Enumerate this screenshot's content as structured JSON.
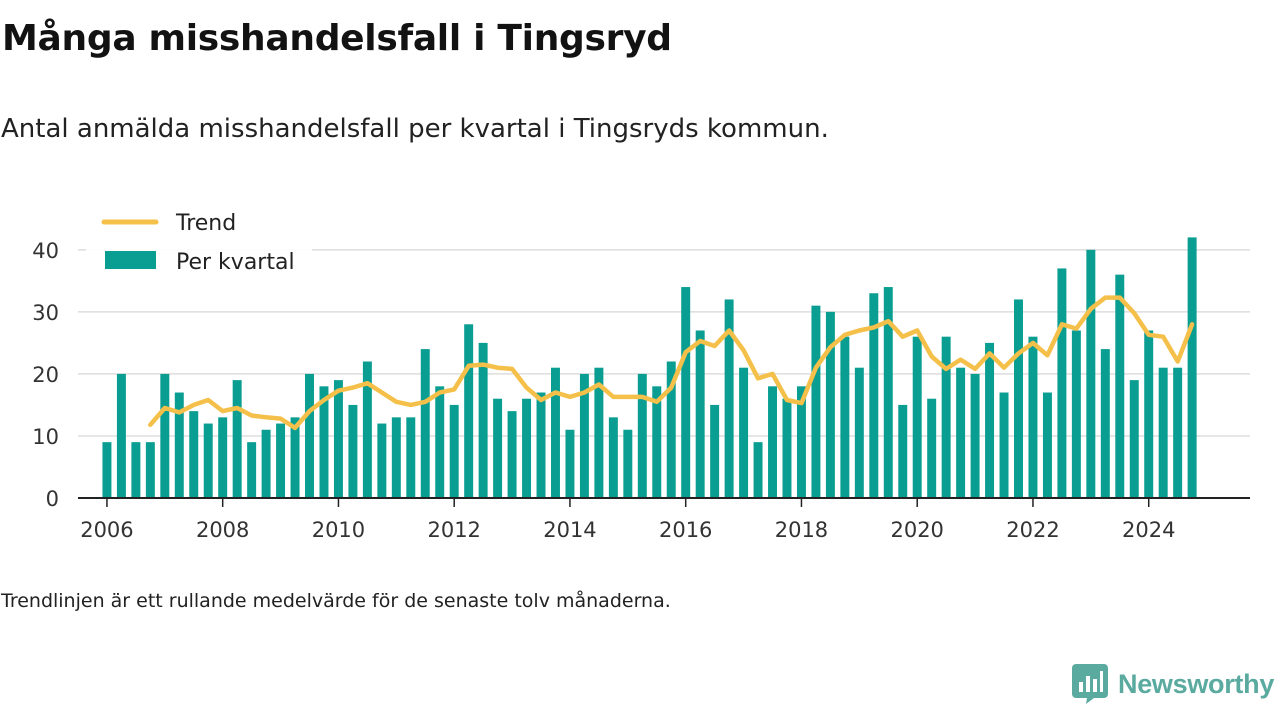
{
  "title": "Många misshandelsfall i Tingsryd",
  "subtitle": "Antal anmälda misshandelsfall per kvartal i Tingsryds kommun.",
  "note": "Trendlinjen är ett rullande medelvärde för de senaste tolv månaderna.",
  "brand": {
    "name": "Newsworthy",
    "icon": "newsworthy-chart-logo-icon"
  },
  "colors": {
    "bar": "#0a9e92",
    "trend": "#f5c04a",
    "grid": "#dddddd",
    "axis": "#222222",
    "brand": "#5aaaa0"
  },
  "chart_data": {
    "type": "bar",
    "legend": {
      "placement": "top-left",
      "entries": [
        "Trend",
        "Per kvartal"
      ]
    },
    "grid": true,
    "x_ticks": [
      "2006",
      "2008",
      "2010",
      "2012",
      "2014",
      "2016",
      "2018",
      "2020",
      "2022",
      "2024"
    ],
    "y_ticks": [
      "0",
      "10",
      "20",
      "30",
      "40"
    ],
    "ylim": [
      0,
      44
    ],
    "x_range": [
      "2005-07",
      "2025-10"
    ],
    "series": [
      {
        "name": "Per kvartal",
        "type": "bar",
        "x": [
          "2006-Q1",
          "2006-Q2",
          "2006-Q3",
          "2006-Q4",
          "2007-Q1",
          "2007-Q2",
          "2007-Q3",
          "2007-Q4",
          "2008-Q1",
          "2008-Q2",
          "2008-Q3",
          "2008-Q4",
          "2009-Q1",
          "2009-Q2",
          "2009-Q3",
          "2009-Q4",
          "2010-Q1",
          "2010-Q2",
          "2010-Q3",
          "2010-Q4",
          "2011-Q1",
          "2011-Q2",
          "2011-Q3",
          "2011-Q4",
          "2012-Q1",
          "2012-Q2",
          "2012-Q3",
          "2012-Q4",
          "2013-Q1",
          "2013-Q2",
          "2013-Q3",
          "2013-Q4",
          "2014-Q1",
          "2014-Q2",
          "2014-Q3",
          "2014-Q4",
          "2015-Q1",
          "2015-Q2",
          "2015-Q3",
          "2015-Q4",
          "2016-Q1",
          "2016-Q2",
          "2016-Q3",
          "2016-Q4",
          "2017-Q1",
          "2017-Q2",
          "2017-Q3",
          "2017-Q4",
          "2018-Q1",
          "2018-Q2",
          "2018-Q3",
          "2018-Q4",
          "2019-Q1",
          "2019-Q2",
          "2019-Q3",
          "2019-Q4",
          "2020-Q1",
          "2020-Q2",
          "2020-Q3",
          "2020-Q4",
          "2021-Q1",
          "2021-Q2",
          "2021-Q3",
          "2021-Q4",
          "2022-Q1",
          "2022-Q2",
          "2022-Q3",
          "2022-Q4",
          "2023-Q1",
          "2023-Q2",
          "2023-Q3",
          "2023-Q4",
          "2024-Q1",
          "2024-Q2",
          "2024-Q3",
          "2024-Q4"
        ],
        "values": [
          9,
          20,
          9,
          9,
          20,
          17,
          14,
          12,
          13,
          19,
          9,
          11,
          12,
          13,
          20,
          18,
          19,
          15,
          22,
          12,
          13,
          13,
          24,
          18,
          15,
          28,
          25,
          16,
          14,
          16,
          17,
          21,
          11,
          20,
          21,
          13,
          11,
          20,
          18,
          22,
          34,
          27,
          15,
          32,
          21,
          9,
          18,
          16,
          18,
          31,
          30,
          26,
          21,
          33,
          34,
          15,
          26,
          16,
          26,
          21,
          20,
          25,
          17,
          32,
          26,
          17,
          37,
          27,
          40,
          24,
          36,
          19,
          27,
          21,
          21,
          42
        ]
      },
      {
        "name": "Trend",
        "type": "line",
        "x": [
          "2006-Q4",
          "2007-Q1",
          "2007-Q2",
          "2007-Q3",
          "2007-Q4",
          "2008-Q1",
          "2008-Q2",
          "2008-Q3",
          "2008-Q4",
          "2009-Q1",
          "2009-Q2",
          "2009-Q3",
          "2009-Q4",
          "2010-Q1",
          "2010-Q2",
          "2010-Q3",
          "2010-Q4",
          "2011-Q1",
          "2011-Q2",
          "2011-Q3",
          "2011-Q4",
          "2012-Q1",
          "2012-Q2",
          "2012-Q3",
          "2012-Q4",
          "2013-Q1",
          "2013-Q2",
          "2013-Q3",
          "2013-Q4",
          "2014-Q1",
          "2014-Q2",
          "2014-Q3",
          "2014-Q4",
          "2015-Q1",
          "2015-Q2",
          "2015-Q3",
          "2015-Q4",
          "2016-Q1",
          "2016-Q2",
          "2016-Q3",
          "2016-Q4",
          "2017-Q1",
          "2017-Q2",
          "2017-Q3",
          "2017-Q4",
          "2018-Q1",
          "2018-Q2",
          "2018-Q3",
          "2018-Q4",
          "2019-Q1",
          "2019-Q2",
          "2019-Q3",
          "2019-Q4",
          "2020-Q1",
          "2020-Q2",
          "2020-Q3",
          "2020-Q4",
          "2021-Q1",
          "2021-Q2",
          "2021-Q3",
          "2021-Q4",
          "2022-Q1",
          "2022-Q2",
          "2022-Q3",
          "2022-Q4",
          "2023-Q1",
          "2023-Q2",
          "2023-Q3",
          "2023-Q4",
          "2024-Q1",
          "2024-Q2",
          "2024-Q3",
          "2024-Q4"
        ],
        "values": [
          11.8,
          14.5,
          13.8,
          15.0,
          15.8,
          14.0,
          14.5,
          13.3,
          13.0,
          12.8,
          11.3,
          14.0,
          15.8,
          17.3,
          17.8,
          18.5,
          17.0,
          15.5,
          15.0,
          15.5,
          17.0,
          17.5,
          21.3,
          21.5,
          21.0,
          20.8,
          17.8,
          15.8,
          17.0,
          16.3,
          17.0,
          18.3,
          16.3,
          16.3,
          16.3,
          15.5,
          17.8,
          23.5,
          25.3,
          24.5,
          27.0,
          23.8,
          19.3,
          20.0,
          15.8,
          15.3,
          21.0,
          24.3,
          26.3,
          27.0,
          27.5,
          28.5,
          26.0,
          27.0,
          22.8,
          20.8,
          22.3,
          20.8,
          23.3,
          21.0,
          23.3,
          25.0,
          23.0,
          28.0,
          27.3,
          30.5,
          32.3,
          32.3,
          29.8,
          26.3,
          26.0,
          22.0,
          28.0
        ]
      }
    ]
  }
}
